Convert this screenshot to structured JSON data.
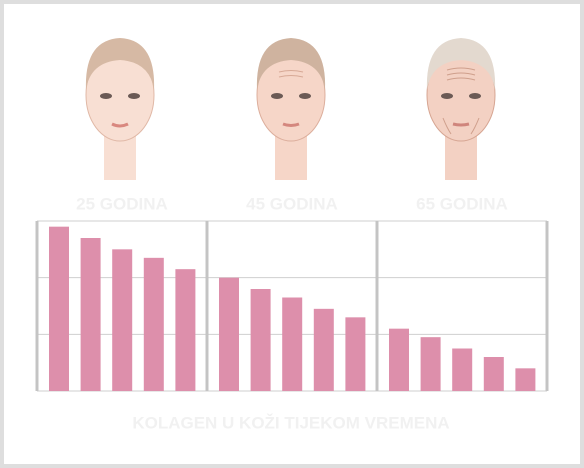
{
  "chart_data": {
    "type": "bar",
    "title": "KOLAGEN U KOŽI TIJEKOM VREMENA",
    "groups": [
      "25 GODINA",
      "45 GODINA",
      "65 GODINA"
    ],
    "categories": [
      null,
      null,
      null,
      null,
      null,
      null,
      null,
      null,
      null,
      null,
      null,
      null,
      null,
      null,
      null
    ],
    "values": [
      2.9,
      2.7,
      2.5,
      2.35,
      2.15,
      2.0,
      1.8,
      1.65,
      1.45,
      1.3,
      1.1,
      0.95,
      0.75,
      0.6,
      0.4
    ],
    "color": "#dd8fab",
    "ylim": [
      0,
      3
    ],
    "yticks": [
      0,
      1,
      2,
      3
    ],
    "grid": true
  }
}
